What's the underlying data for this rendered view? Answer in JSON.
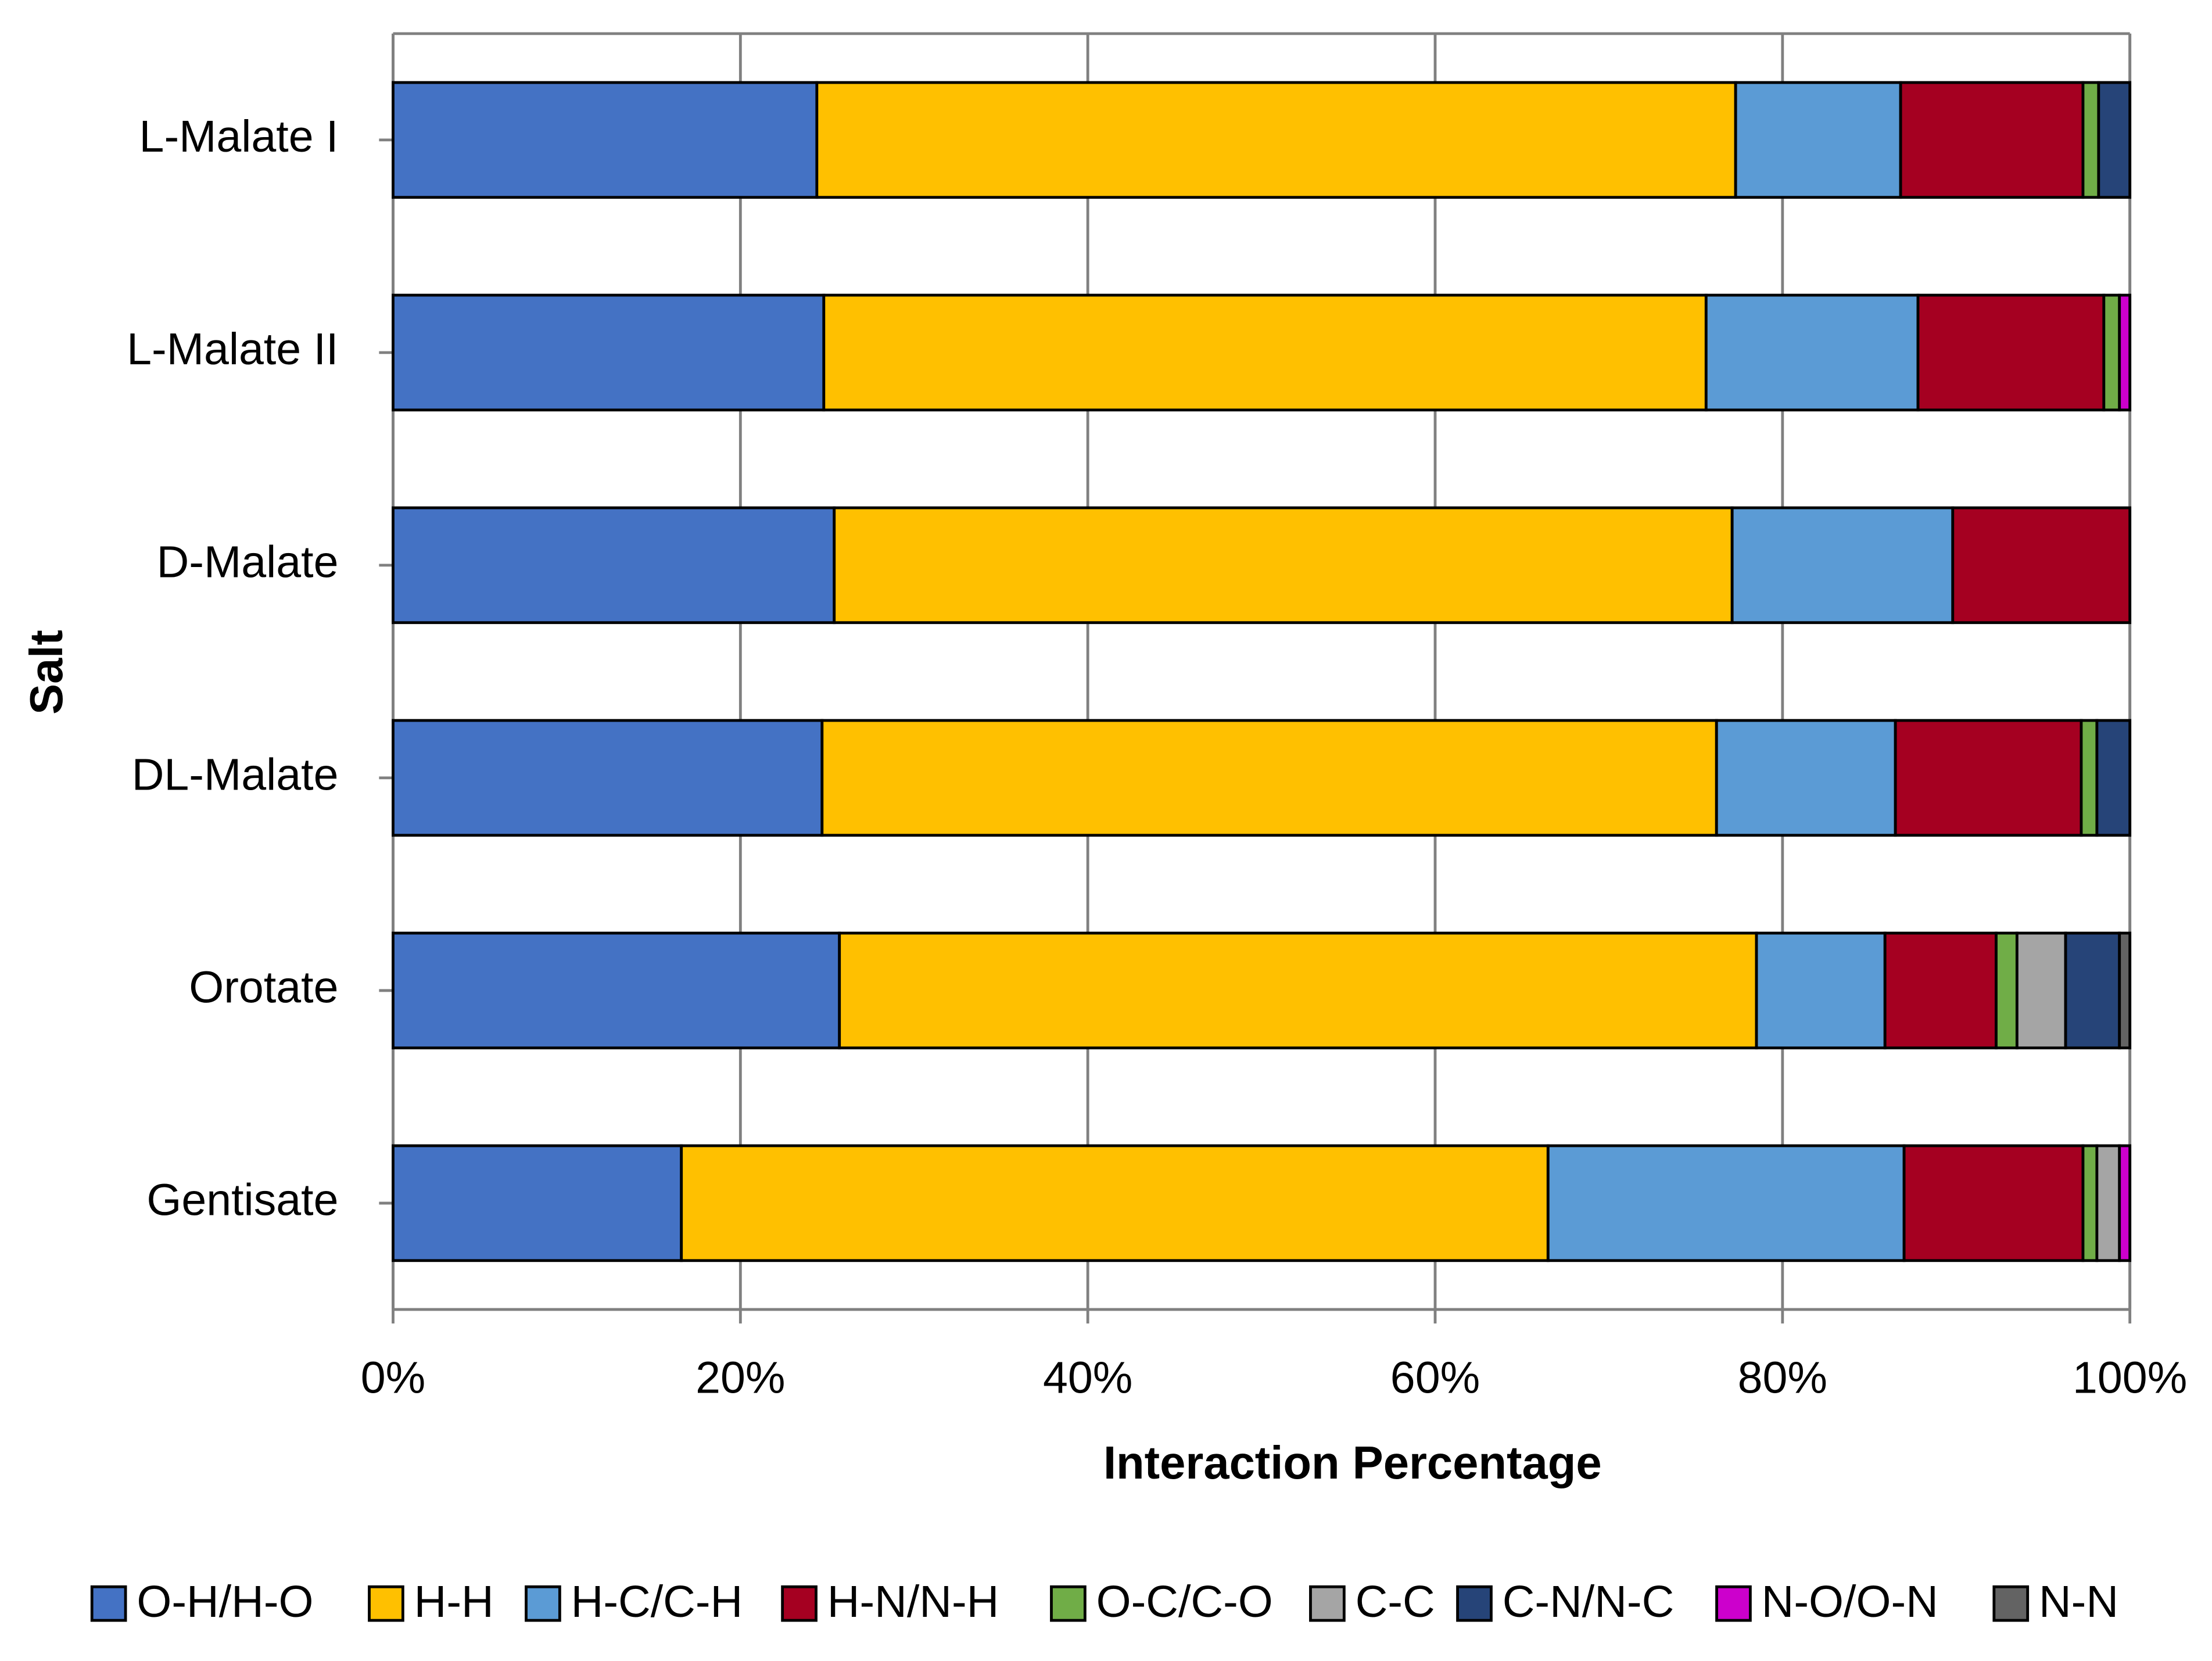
{
  "chart_data": {
    "type": "stacked-barh",
    "x_label": "Interaction Percentage",
    "y_label": "Salt",
    "categories": [
      "L-Malate I",
      "L-Malate II",
      "D-Malate",
      "DL-Malate",
      "Orotate",
      "Gentisate"
    ],
    "series": [
      {
        "name": "O-H/H-O",
        "color": "#4472c4",
        "values": [
          24.4,
          24.8,
          25.4,
          24.7,
          25.7,
          16.6
        ]
      },
      {
        "name": "H-H",
        "color": "#ffc000",
        "values": [
          52.9,
          50.8,
          51.7,
          51.5,
          52.8,
          49.9
        ]
      },
      {
        "name": "H-C/C-H",
        "color": "#5b9bd5",
        "values": [
          9.5,
          12.2,
          12.7,
          10.3,
          7.4,
          20.5
        ]
      },
      {
        "name": "H-N/N-H",
        "color": "#a50021",
        "values": [
          10.5,
          10.7,
          10.2,
          10.7,
          6.4,
          10.3
        ]
      },
      {
        "name": "O-C/C-O",
        "color": "#70ad47",
        "values": [
          0.9,
          0.9,
          0,
          0.9,
          1.2,
          0.8
        ]
      },
      {
        "name": "C-C",
        "color": "#a5a5a5",
        "values": [
          0,
          0,
          0,
          0,
          2.8,
          1.3
        ]
      },
      {
        "name": "C-N/N-C",
        "color": "#264478",
        "values": [
          1.8,
          0,
          0,
          1.9,
          3.1,
          0
        ]
      },
      {
        "name": "N-O/O-N",
        "color": "#cc00cc",
        "values": [
          0,
          0.6,
          0,
          0,
          0,
          0.6
        ]
      },
      {
        "name": "N-N",
        "color": "#636363",
        "values": [
          0,
          0,
          0,
          0,
          0.6,
          0
        ]
      }
    ],
    "xlim": [
      0,
      100
    ],
    "xticks": [
      {
        "value": 0,
        "label": "0%"
      },
      {
        "value": 20,
        "label": "20%"
      },
      {
        "value": 40,
        "label": "40%"
      },
      {
        "value": 60,
        "label": "60%"
      },
      {
        "value": 80,
        "label": "80%"
      },
      {
        "value": 100,
        "label": "100%"
      }
    ],
    "grid": true,
    "legend": "bottom"
  }
}
